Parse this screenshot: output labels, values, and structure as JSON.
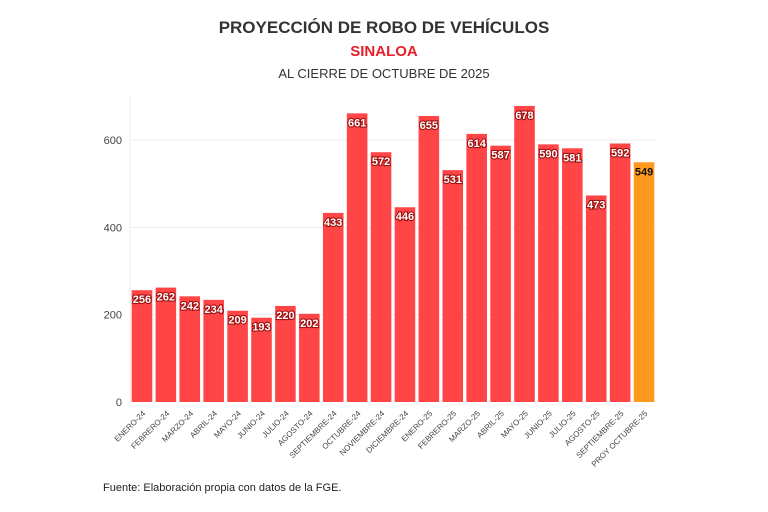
{
  "chart_data": {
    "type": "bar",
    "title": "PROYECCIÓN DE ROBO DE VEHÍCULOS",
    "subtitle": "SINALOA",
    "subtitle2": "AL CIERRE DE OCTUBRE DE 2025",
    "xlabel": "",
    "ylabel": "",
    "ylim": [
      0,
      700
    ],
    "yticks": [
      0,
      200,
      400,
      600
    ],
    "grid": true,
    "categories": [
      "ENERO-24",
      "FEBRERO-24",
      "MARZO-24",
      "ABRIL-24",
      "MAYO-24",
      "JUNIO-24",
      "JULIO-24",
      "AGOSTO-24",
      "SEPTIEMBRE-24",
      "OCTUBRE-24",
      "NOVIEMBRE-24",
      "DICIEMBRE-24",
      "ENERO-25",
      "FEBRERO-25",
      "MARZO-25",
      "ABRIL-25",
      "MAYO-25",
      "JUNIO-25",
      "JULIO-25",
      "AGOSTO-25",
      "SEPTIEMBRE-25",
      "PROY OCTUBRE-25"
    ],
    "values": [
      256,
      262,
      242,
      234,
      209,
      193,
      220,
      202,
      433,
      661,
      572,
      446,
      655,
      531,
      614,
      587,
      678,
      590,
      581,
      473,
      592,
      549
    ],
    "colors": {
      "actual": "#ff4545",
      "projection": "#ff9a1f"
    }
  },
  "source": "Fuente: Elaboración propia con datos de la FGE."
}
